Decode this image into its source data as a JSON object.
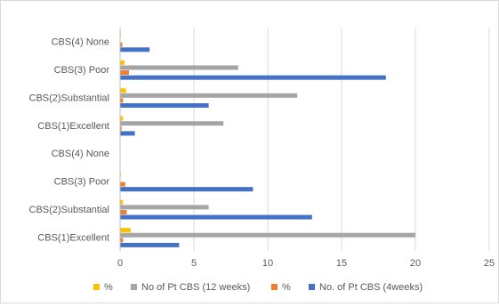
{
  "chart_data": {
    "type": "bar",
    "orientation": "horizontal",
    "categories": [
      "CBS(4) None",
      "CBS(3) Poor",
      "CBS(2)Substantial",
      "CBS(1)Excellent",
      "CBS(4) None",
      "CBS(3) Poor",
      "CBS(2)Substantial",
      "CBS(1)Excellent"
    ],
    "series": [
      {
        "name": "%",
        "color": "#FFC000",
        "values": [
          0.05,
          0.3,
          0.4,
          0.2,
          0,
          0.05,
          0.2,
          0.7
        ]
      },
      {
        "name": "No of Pt CBS (12 weeks)",
        "color": "#A5A5A5",
        "values": [
          0,
          8,
          12,
          7,
          0,
          0,
          6,
          20
        ]
      },
      {
        "name": "%",
        "color": "#ED7D31",
        "values": [
          0.15,
          0.6,
          0.2,
          0.1,
          0,
          0.35,
          0.45,
          0.2
        ]
      },
      {
        "name": "No. of Pt CBS (4weeks)",
        "color": "#4472C4",
        "values": [
          2,
          18,
          6,
          1,
          0,
          9,
          13,
          4
        ]
      }
    ],
    "xlim": [
      0,
      25
    ],
    "xticks": [
      0,
      5,
      10,
      15,
      20,
      25
    ],
    "grid": "vertical",
    "legend": "bottom",
    "title": "",
    "xlabel": "",
    "ylabel": ""
  }
}
